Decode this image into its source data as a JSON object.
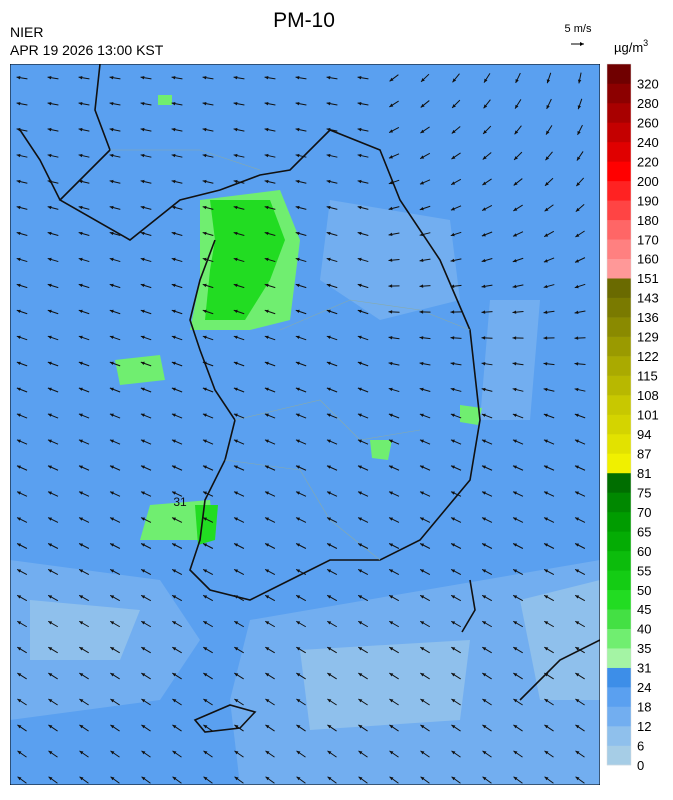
{
  "header": {
    "title": "PM-10",
    "source": "NIER",
    "timestamp": "APR 19 2026 13:00 KST"
  },
  "wind_scale": {
    "label": "5 m/s"
  },
  "legend": {
    "unit": "µg/m",
    "unit_exponent": "3",
    "labels": [
      0,
      6,
      12,
      18,
      24,
      31,
      35,
      40,
      45,
      50,
      55,
      60,
      65,
      70,
      75,
      81,
      87,
      94,
      101,
      108,
      115,
      122,
      129,
      136,
      143,
      151,
      160,
      170,
      180,
      190,
      200,
      220,
      240,
      260,
      280,
      320
    ],
    "colors": [
      "#a6cde6",
      "#8fc0ec",
      "#72aef0",
      "#5aa0f0",
      "#3d8ee8",
      "#a4f4a4",
      "#70ee70",
      "#44e044",
      "#22dc22",
      "#14cc14",
      "#0cbc0c",
      "#04ac04",
      "#009c00",
      "#008800",
      "#006e00",
      "#f0f000",
      "#e2e200",
      "#d4d400",
      "#c8c800",
      "#b8b800",
      "#aaaa00",
      "#9a9a00",
      "#8a8a00",
      "#7a7a00",
      "#6a6a00",
      "#ff9898",
      "#ff8080",
      "#ff6666",
      "#ff4444",
      "#ff2222",
      "#ff0000",
      "#e00000",
      "#c40000",
      "#a80000",
      "#8c0000",
      "#700000"
    ]
  },
  "map": {
    "labels": [
      "31"
    ]
  }
}
